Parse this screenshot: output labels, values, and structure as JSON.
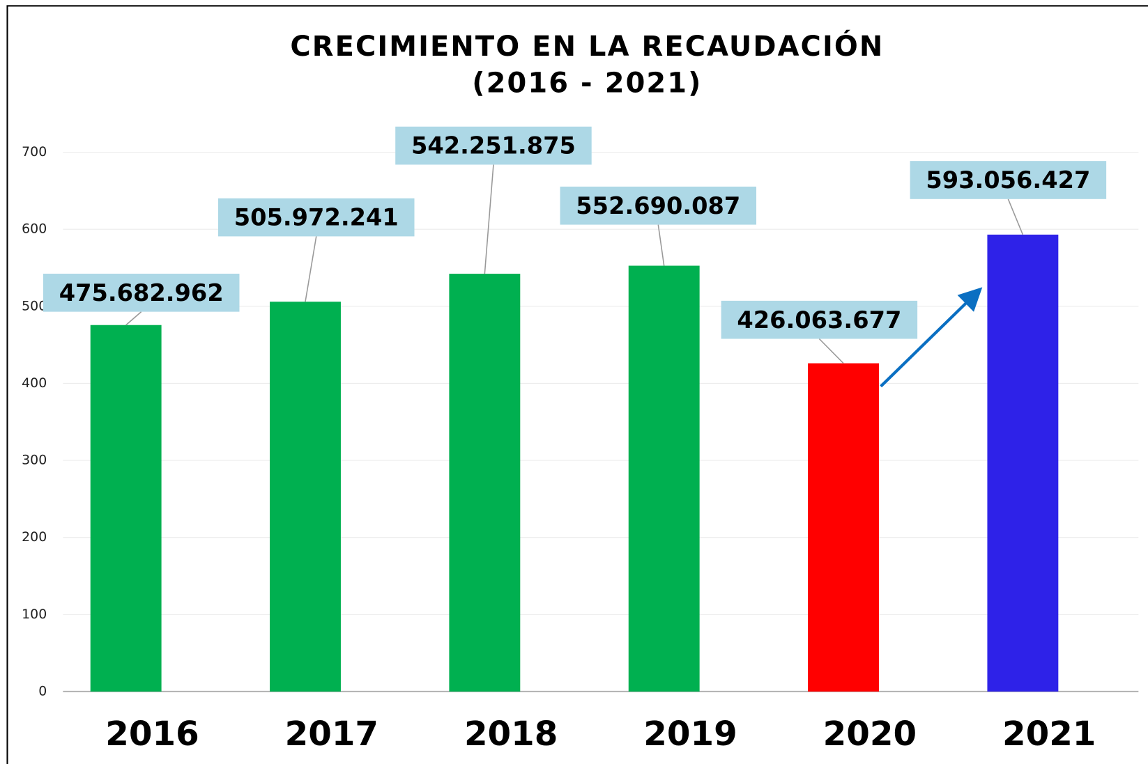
{
  "chart_data": {
    "type": "bar",
    "title": "CRECIMIENTO EN LA RECAUDACIÓN",
    "subtitle": "(2016 - 2021)",
    "categories": [
      "2016",
      "2017",
      "2018",
      "2019",
      "2020",
      "2021"
    ],
    "values": [
      475.682962,
      505.972241,
      542.251875,
      552.690087,
      426.063677,
      593.056427
    ],
    "value_labels": [
      "475.682.962",
      "505.972.241",
      "542.251.875",
      "552.690.087",
      "426.063.677",
      "593.056.427"
    ],
    "colors": [
      "#00b050",
      "#00b050",
      "#00b050",
      "#00b050",
      "#ff0000",
      "#2e22e8"
    ],
    "ylim": [
      0,
      700
    ],
    "yticks": [
      0,
      100,
      200,
      300,
      400,
      500,
      600,
      700
    ],
    "grid": true
  }
}
